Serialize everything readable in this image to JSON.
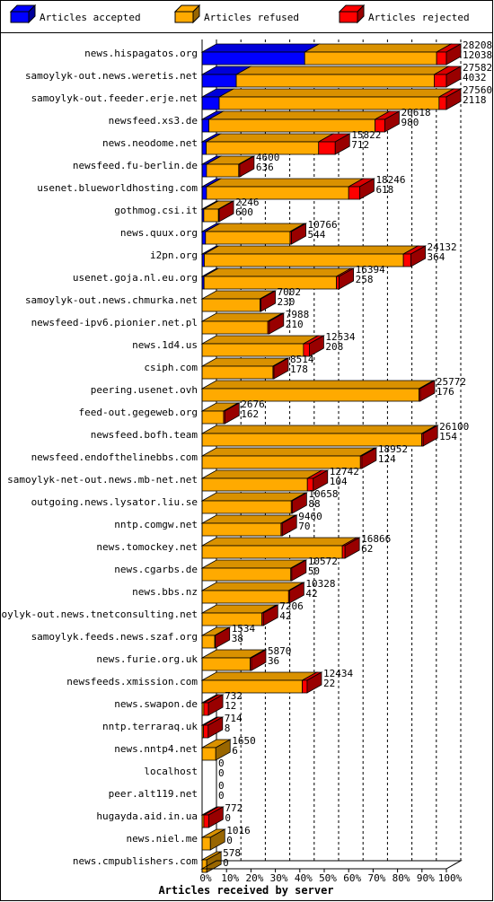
{
  "legend": [
    {
      "label": "Articles accepted",
      "color": "#0000ff",
      "icon": "blue-box-icon"
    },
    {
      "label": "Articles refused",
      "color": "#ffaa00",
      "icon": "orange-box-icon"
    },
    {
      "label": "Articles rejected",
      "color": "#ff0000",
      "icon": "red-box-icon"
    }
  ],
  "colors": {
    "accepted": "#0000ff",
    "refused": "#ffaa00",
    "rejected": "#ff0000",
    "grid": "#000000"
  },
  "chart_data": {
    "type": "bar",
    "orientation": "horizontal",
    "stacked": true,
    "percent_scale": true,
    "title": "Articles received by server",
    "xlim": [
      0,
      100
    ],
    "xticks": [
      "0%",
      "10%",
      "20%",
      "30%",
      "40%",
      "50%",
      "60%",
      "70%",
      "80%",
      "90%",
      "100%"
    ],
    "grid": "vertical dashed",
    "legend_position": "top",
    "series_names": [
      "Articles accepted",
      "Articles refused",
      "Articles rejected"
    ],
    "rows": [
      {
        "server": "news.hispagatos.org",
        "total": "28208",
        "rejected": "12038",
        "pct": [
          42,
          54,
          4
        ]
      },
      {
        "server": "samoylyk-out.news.weretis.net",
        "total": "27582",
        "rejected": "4032",
        "pct": [
          14,
          81,
          5
        ]
      },
      {
        "server": "samoylyk-out.feeder.erje.net",
        "total": "27560",
        "rejected": "2118",
        "pct": [
          7,
          90,
          3
        ]
      },
      {
        "server": "newsfeed.xs3.de",
        "total": "20618",
        "rejected": "980",
        "pct": [
          2.8,
          68,
          4
        ]
      },
      {
        "server": "news.neodome.net",
        "total": "15822",
        "rejected": "712",
        "pct": [
          1.7,
          46,
          6.8
        ]
      },
      {
        "server": "newsfeed.fu-berlin.de",
        "total": "4600",
        "rejected": "636",
        "pct": [
          1.8,
          13.2,
          0.4
        ]
      },
      {
        "server": "usenet.blueworldhosting.com",
        "total": "18246",
        "rejected": "618",
        "pct": [
          1.8,
          58.2,
          4.5
        ]
      },
      {
        "server": "gothmog.csi.it",
        "total": "2246",
        "rejected": "600",
        "pct": [
          0.7,
          6.0,
          0.3
        ]
      },
      {
        "server": "news.quux.org",
        "total": "10766",
        "rejected": "544",
        "pct": [
          1.4,
          34.6,
          0.6
        ]
      },
      {
        "server": "i2pn.org",
        "total": "24132",
        "rejected": "364",
        "pct": [
          0.9,
          81.5,
          3.1
        ]
      },
      {
        "server": "usenet.goja.nl.eu.org",
        "total": "16394",
        "rejected": "258",
        "pct": [
          0.8,
          54.2,
          1.1
        ]
      },
      {
        "server": "samoylyk-out.news.chmurka.net",
        "total": "7002",
        "rejected": "230",
        "pct": [
          0,
          23.7,
          0.4
        ]
      },
      {
        "server": "newsfeed-ipv6.pionier.net.pl",
        "total": "7988",
        "rejected": "210",
        "pct": [
          0,
          26.9,
          0.6
        ]
      },
      {
        "server": "news.1d4.us",
        "total": "12534",
        "rejected": "208",
        "pct": [
          0,
          41.5,
          2.4
        ]
      },
      {
        "server": "csiph.com",
        "total": "8514",
        "rejected": "178",
        "pct": [
          0,
          29.0,
          0.4
        ]
      },
      {
        "server": "peering.usenet.ovh",
        "total": "25772",
        "rejected": "176",
        "pct": [
          0,
          88.8,
          0.5
        ]
      },
      {
        "server": "feed-out.gegeweb.org",
        "total": "2676",
        "rejected": "162",
        "pct": [
          0,
          8.8,
          0.5
        ]
      },
      {
        "server": "newsfeed.bofh.team",
        "total": "26100",
        "rejected": "154",
        "pct": [
          0,
          89.9,
          0.6
        ]
      },
      {
        "server": "newsfeed.endofthelinebbs.com",
        "total": "18952",
        "rejected": "124",
        "pct": [
          0,
          64.8,
          0.6
        ]
      },
      {
        "server": "samoylyk-net-out.news.mb-net.net",
        "total": "12742",
        "rejected": "104",
        "pct": [
          0,
          43.1,
          2.4
        ]
      },
      {
        "server": "outgoing.news.lysator.liu.se",
        "total": "10658",
        "rejected": "88",
        "pct": [
          0,
          36.5,
          0.4
        ]
      },
      {
        "server": "nntp.comgw.net",
        "total": "9460",
        "rejected": "70",
        "pct": [
          0,
          32.3,
          0.5
        ]
      },
      {
        "server": "news.tomockey.net",
        "total": "16866",
        "rejected": "62",
        "pct": [
          0,
          57.4,
          1.1
        ]
      },
      {
        "server": "news.cgarbs.de",
        "total": "10572",
        "rejected": "50",
        "pct": [
          0,
          36.3,
          0.4
        ]
      },
      {
        "server": "news.bbs.nz",
        "total": "10328",
        "rejected": "42",
        "pct": [
          0,
          35.4,
          0.4
        ]
      },
      {
        "server": "samoylyk-out.news.tnetconsulting.net",
        "total": "7206",
        "rejected": "42",
        "pct": [
          0,
          24.5,
          0.6
        ]
      },
      {
        "server": "samoylyk.feeds.news.szaf.org",
        "total": "1534",
        "rejected": "38",
        "pct": [
          0,
          5.2,
          0.2
        ]
      },
      {
        "server": "news.furie.org.uk",
        "total": "5870",
        "rejected": "36",
        "pct": [
          0,
          19.7,
          0.5
        ]
      },
      {
        "server": "newsfeeds.xmission.com",
        "total": "12434",
        "rejected": "22",
        "pct": [
          0,
          41.0,
          2.0
        ]
      },
      {
        "server": "news.swapon.de",
        "total": "732",
        "rejected": "12",
        "pct": [
          0,
          0.7,
          1.9
        ]
      },
      {
        "server": "nntp.terraraq.uk",
        "total": "714",
        "rejected": "8",
        "pct": [
          0,
          0.6,
          1.9
        ]
      },
      {
        "server": "news.nntp4.net",
        "total": "1650",
        "rejected": "6",
        "pct": [
          0,
          5.6,
          0
        ]
      },
      {
        "server": "localhost",
        "total": "0",
        "rejected": "0",
        "pct": [
          0,
          0,
          0
        ]
      },
      {
        "server": "peer.alt119.net",
        "total": "0",
        "rejected": "0",
        "pct": [
          0,
          0,
          0
        ]
      },
      {
        "server": "hugayda.aid.in.ua",
        "total": "772",
        "rejected": "0",
        "pct": [
          0,
          0.7,
          2.0
        ]
      },
      {
        "server": "news.niel.me",
        "total": "1016",
        "rejected": "0",
        "pct": [
          0,
          3.4,
          0
        ]
      },
      {
        "server": "news.cmpublishers.com",
        "total": "578",
        "rejected": "0",
        "pct": [
          0,
          1.9,
          0
        ]
      }
    ]
  }
}
